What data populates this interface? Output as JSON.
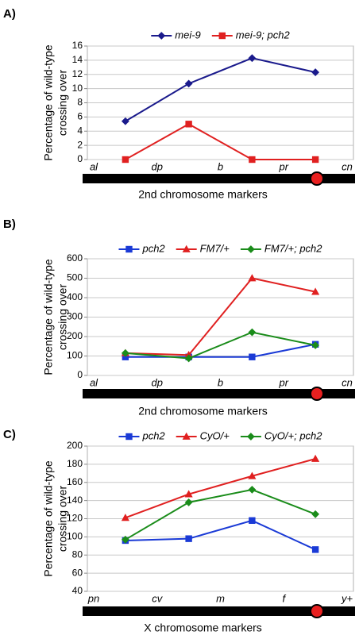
{
  "chart_data": [
    {
      "type": "line",
      "panel_label": "A)",
      "ylabel": [
        "Percentage of wild-type",
        "crossing over"
      ],
      "xlabel": "2nd chromosome markers",
      "markers": [
        "al",
        "dp",
        "b",
        "pr",
        "cn"
      ],
      "ylim": [
        0,
        16
      ],
      "yticks": [
        0,
        2,
        4,
        6,
        8,
        10,
        12,
        14,
        16
      ],
      "grid": true,
      "legend": "top",
      "series": [
        {
          "name": "mei-9",
          "color": "#1a1a8c",
          "marker": "diamond",
          "values": [
            5.4,
            10.7,
            14.3,
            12.3
          ]
        },
        {
          "name": "mei-9; pch2",
          "color": "#e02020",
          "marker": "square",
          "values": [
            0,
            5,
            0,
            0
          ]
        }
      ]
    },
    {
      "type": "line",
      "panel_label": "B)",
      "ylabel": [
        "Percentage of wild-type",
        "crossing over"
      ],
      "xlabel": "2nd chromosome markers",
      "markers": [
        "al",
        "dp",
        "b",
        "pr",
        "cn"
      ],
      "ylim": [
        0,
        600
      ],
      "yticks": [
        0,
        100,
        200,
        300,
        400,
        500,
        600
      ],
      "grid": true,
      "legend": "top",
      "series": [
        {
          "name": "pch2",
          "color": "#1a3ad6",
          "marker": "square",
          "values": [
            95,
            95,
            95,
            160
          ]
        },
        {
          "name": "FM7/+",
          "color": "#e02020",
          "marker": "triangle",
          "values": [
            115,
            105,
            500,
            430
          ]
        },
        {
          "name": "FM7/+; pch2",
          "color": "#1a8c1a",
          "marker": "diamond",
          "values": [
            115,
            88,
            222,
            155
          ]
        }
      ]
    },
    {
      "type": "line",
      "panel_label": "C)",
      "ylabel": [
        "Percentage of wild-type",
        "crossing over"
      ],
      "xlabel": "X chromosome markers",
      "markers": [
        "pn",
        "cv",
        "m",
        "f",
        "y+"
      ],
      "ylim": [
        40,
        200
      ],
      "yticks": [
        40,
        60,
        80,
        100,
        120,
        140,
        160,
        180,
        200
      ],
      "grid": true,
      "legend": "top",
      "series": [
        {
          "name": "pch2",
          "color": "#1a3ad6",
          "marker": "square",
          "values": [
            96,
            98,
            118,
            86
          ]
        },
        {
          "name": "CyO/+",
          "color": "#e02020",
          "marker": "triangle",
          "values": [
            121,
            147,
            167,
            186
          ]
        },
        {
          "name": "CyO/+; pch2",
          "color": "#1a8c1a",
          "marker": "diamond",
          "values": [
            97,
            138,
            152,
            125
          ]
        }
      ]
    }
  ]
}
